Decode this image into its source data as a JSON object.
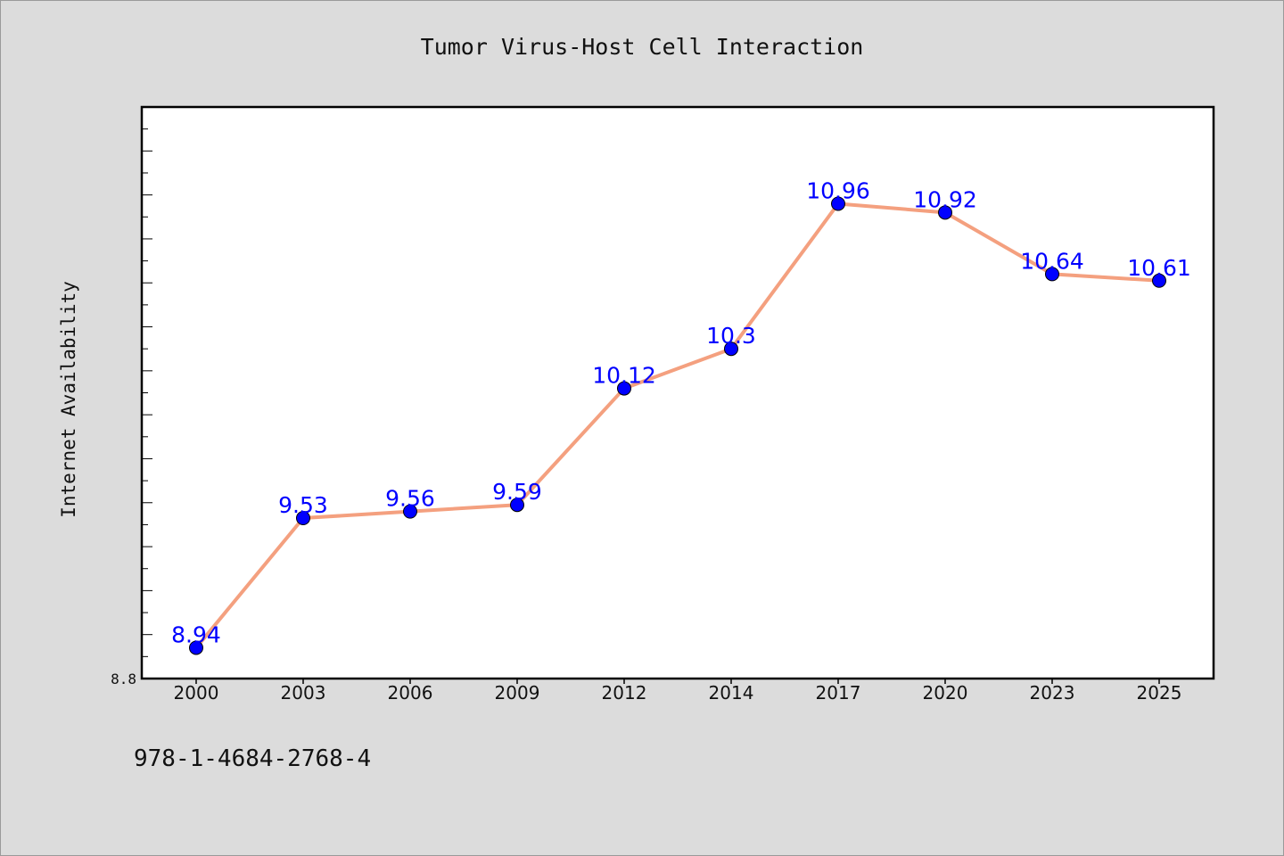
{
  "chart_data": {
    "type": "line",
    "title": "Tumor Virus-Host Cell Interaction",
    "xlabel": "",
    "ylabel": "Internet Availability",
    "categories": [
      "2000",
      "2003",
      "2006",
      "2009",
      "2012",
      "2014",
      "2017",
      "2020",
      "2023",
      "2025"
    ],
    "series": [
      {
        "values": [
          8.94,
          9.53,
          9.56,
          9.59,
          10.12,
          10.3,
          10.96,
          10.92,
          10.64,
          10.61
        ]
      }
    ],
    "data_labels": [
      "8.94",
      "9.53",
      "9.56",
      "9.59",
      "10.12",
      "10.3",
      "10.96",
      "10.92",
      "10.64",
      "10.61"
    ],
    "ylim": [
      8.8,
      11.4
    ],
    "y_tick_labels": [
      "8.8"
    ],
    "grid": false,
    "legend": "none",
    "colors": {
      "line": "#f4a07f",
      "marker": "#0000ff",
      "label": "#0000ff",
      "background": "#dcdcdc",
      "plot": "#ffffff"
    }
  },
  "footer": {
    "isbn": "978-1-4684-2768-4"
  }
}
